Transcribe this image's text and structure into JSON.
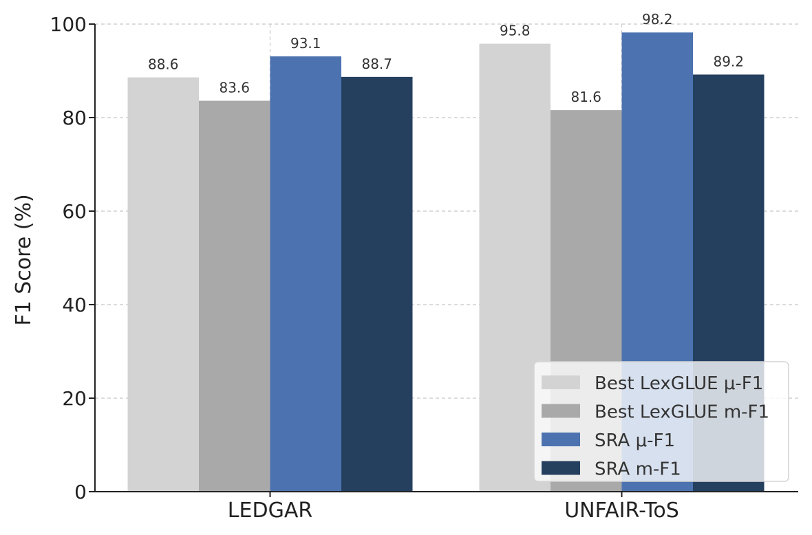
{
  "chart_data": {
    "type": "bar",
    "categories": [
      "LEDGAR",
      "UNFAIR-ToS"
    ],
    "series": [
      {
        "name": "Best LexGLUE μ-F1",
        "values": [
          88.6,
          95.8
        ],
        "color": "#d3d3d3"
      },
      {
        "name": "Best LexGLUE m-F1",
        "values": [
          83.6,
          81.6
        ],
        "color": "#a9a9a9"
      },
      {
        "name": "SRA μ-F1",
        "values": [
          93.1,
          98.2
        ],
        "color": "#4c72b0"
      },
      {
        "name": "SRA m-F1",
        "values": [
          88.7,
          89.2
        ],
        "color": "#253f5f"
      }
    ],
    "data_labels": [
      [
        "88.6",
        "95.8"
      ],
      [
        "83.6",
        "81.6"
      ],
      [
        "93.1",
        "98.2"
      ],
      [
        "88.7",
        "89.2"
      ]
    ],
    "title": "",
    "xlabel": "",
    "ylabel": "F1 Score (%)",
    "ylim": [
      0,
      100
    ],
    "yticks": [
      0,
      20,
      40,
      60,
      80,
      100
    ],
    "ytick_labels": [
      "0",
      "20",
      "40",
      "60",
      "80",
      "100"
    ],
    "grid": true,
    "legend_position": "bottom-right"
  }
}
